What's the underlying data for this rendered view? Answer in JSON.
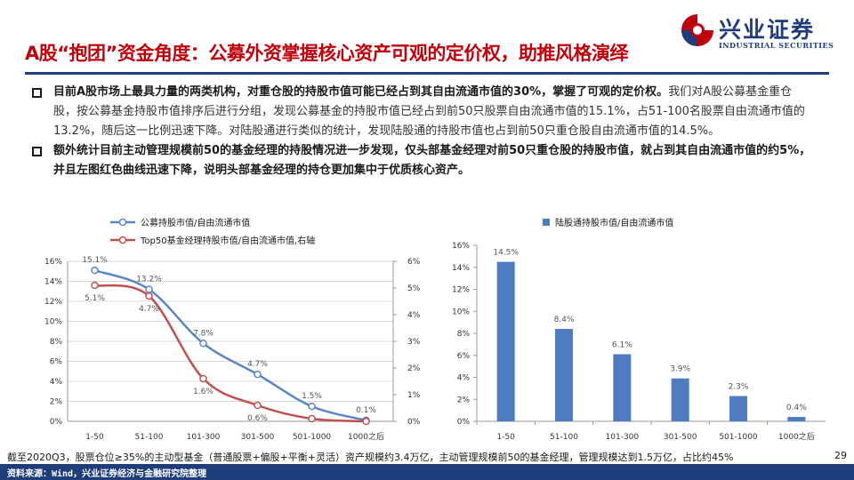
{
  "header": {
    "title": "A股“抱团”资金角度：公募外资掌握核心资产可观的定价权，助推风格演绎",
    "logo_cn": "兴业证券",
    "logo_en": "INDUSTRIAL SECURITIES",
    "logo_icon": "industrial-securities-logo",
    "accent_color": "#c0000b",
    "brand_color": "#1f3d7a"
  },
  "bullets": [
    {
      "strong": "目前A股市场上最具力量的两类机构，对重仓股的持股市值可能已经占到其自由流通市值的30%，掌握了可观的定价权。",
      "normal": "我们对A股公募基金重仓股，按公募基金持股市值排序后进行分组，发现公募基金的持股市值已经占到前50只股票自由流通市值的15.1%，占51-100名股票自由流通市值的13.2%，随后这一比例迅速下降。对陆股通进行类似的统计，发现陆股通的持股市值也占到前50只重仓股自由流通市值的14.5%。"
    },
    {
      "strong": "额外统计目前主动管理规模前50的基金经理的持股情况进一步发现，仅头部基金经理对前50只重仓股的持股市值，就占到其自由流通市值的约5%，并且左图红色曲线迅速下降，说明头部基金经理的持仓更加集中于优质核心资产。",
      "normal": ""
    }
  ],
  "chart_data": [
    {
      "type": "line",
      "categories": [
        "1-50",
        "51-100",
        "101-300",
        "301-500",
        "501-1000",
        "1000之后"
      ],
      "series": [
        {
          "name": "公募持股市值/自由流通市值",
          "axis": "left",
          "color": "#5b86c5",
          "values": [
            15.1,
            13.2,
            7.8,
            4.7,
            1.5,
            0.1
          ],
          "labels": [
            "15.1%",
            "13.2%",
            "7.8%",
            "4.7%",
            "1.5%",
            "0.1%"
          ]
        },
        {
          "name": "Top50基金经理持股市值/自由流通市值,右轴",
          "axis": "right",
          "color": "#c0504d",
          "values": [
            5.1,
            4.7,
            1.6,
            0.6,
            0.1,
            0.0
          ],
          "labels": [
            "5.1%",
            "4.7%",
            "1.6%",
            "0.6%",
            "",
            ""
          ]
        }
      ],
      "y_left": {
        "min": 0,
        "max": 16,
        "ticks": [
          "0%",
          "2%",
          "4%",
          "6%",
          "8%",
          "10%",
          "12%",
          "14%",
          "16%"
        ]
      },
      "y_right": {
        "min": 0,
        "max": 6,
        "ticks": [
          "0%",
          "1%",
          "2%",
          "3%",
          "4%",
          "5%",
          "6%"
        ]
      },
      "grid": true,
      "legend": "top-left"
    },
    {
      "type": "bar",
      "categories": [
        "1-50",
        "51-100",
        "101-300",
        "301-500",
        "501-1000",
        "1000之后"
      ],
      "series": [
        {
          "name": "陆股通持股市值/自由流通市值",
          "color": "#4f7cc0",
          "values": [
            14.5,
            8.4,
            6.1,
            3.9,
            2.3,
            0.4
          ],
          "labels": [
            "14.5%",
            "8.4%",
            "6.1%",
            "3.9%",
            "2.3%",
            "0.4%"
          ]
        }
      ],
      "y": {
        "min": 0,
        "max": 16,
        "ticks": [
          "0%",
          "2%",
          "4%",
          "6%",
          "8%",
          "10%",
          "12%",
          "14%",
          "16%"
        ]
      },
      "grid": false,
      "legend": "top"
    }
  ],
  "footer": {
    "note": "截至2020Q3，股票仓位≥35%的主动型基金（普通股票+偏股+平衡+灵活）资产规模约3.4万亿，主动管理规模前50的基金经理，管理规模达到1.5万亿，占比约45%",
    "page": "29",
    "source": "资料来源：Wind，兴业证券经济与金融研究院整理"
  }
}
